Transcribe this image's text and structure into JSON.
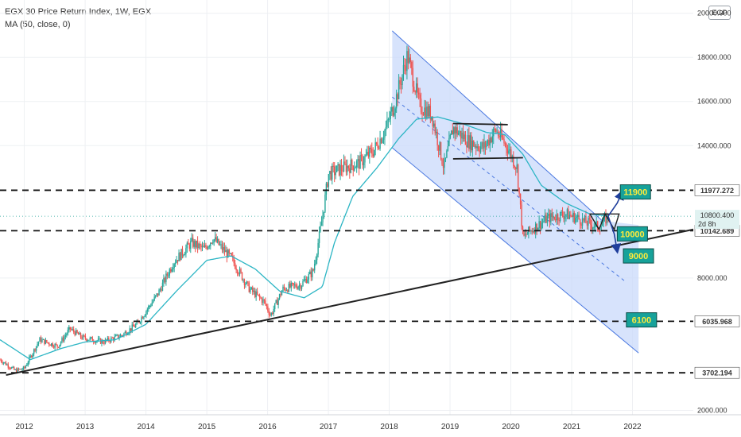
{
  "legend": {
    "title": "EGX 30 Price Return Index, 1W, EGX",
    "ma": "MA (50, close, 0)"
  },
  "currency": "EGP",
  "colors": {
    "up": "#26a69a",
    "down": "#ef5350",
    "ma": "#2bb5c4",
    "channel_fill": "#c9d9fb",
    "channel_line": "#4a78e0",
    "annotation_box": "#17a29a",
    "annotation_text": "#ffeb3b",
    "arrow": "#1f3e9c",
    "level_line": "#111111",
    "grid": "#eef0f3"
  },
  "chart_data": {
    "type": "candlestick",
    "title": "EGX 30 Price Return Index, 1W, EGX",
    "x_ticks": [
      "2012",
      "2013",
      "2014",
      "2015",
      "2016",
      "2017",
      "2018",
      "2019",
      "2020",
      "2021",
      "2022"
    ],
    "y_ticks": [
      "20000.000",
      "18000.000",
      "16000.000",
      "14000.000",
      "8000.000",
      "2000.000"
    ],
    "y_range": [
      1800,
      20600
    ],
    "x_range": [
      2011.6,
      2023.0
    ],
    "horizontal_levels": [
      {
        "value": 11977.272,
        "label": "11977.272",
        "style": "dashed"
      },
      {
        "value": 10142.689,
        "label": "10142.689",
        "style": "dashed"
      },
      {
        "value": 6035.968,
        "label": "6035.968",
        "style": "dashed"
      },
      {
        "value": 3702.194,
        "label": "3702.194",
        "style": "dashed"
      }
    ],
    "last_price": {
      "value": "10800.400",
      "countdown": "2d 8h"
    },
    "trendline": {
      "from": [
        2011.7,
        3600
      ],
      "to": [
        2023.0,
        10200
      ]
    },
    "channel": {
      "upper": [
        [
          2018.05,
          19200
        ],
        [
          2021.5,
          10600
        ]
      ],
      "lower": [
        [
          2018.05,
          13900
        ],
        [
          2022.1,
          4600
        ]
      ],
      "mid": [
        [
          2018.05,
          16200
        ],
        [
          2021.9,
          7800
        ]
      ]
    },
    "consolidation_lines": [
      {
        "from": [
          2019.05,
          15000
        ],
        "to": [
          2019.95,
          14950
        ]
      },
      {
        "from": [
          2019.05,
          13400
        ],
        "to": [
          2020.2,
          13450
        ]
      }
    ],
    "annotations": [
      {
        "text": "11900",
        "x": 2021.8,
        "y": 11900
      },
      {
        "text": "10000",
        "x": 2021.75,
        "y": 10000
      },
      {
        "text": "9000",
        "x": 2021.85,
        "y": 9000
      },
      {
        "text": "6100",
        "x": 2021.9,
        "y": 6100
      }
    ],
    "close_anchors": [
      [
        2011.6,
        4300
      ],
      [
        2011.85,
        3800
      ],
      [
        2012.0,
        3900
      ],
      [
        2012.25,
        5200
      ],
      [
        2012.55,
        4900
      ],
      [
        2012.75,
        5700
      ],
      [
        2012.95,
        5300
      ],
      [
        2013.3,
        5100
      ],
      [
        2013.6,
        5400
      ],
      [
        2013.85,
        5900
      ],
      [
        2014.2,
        7300
      ],
      [
        2014.45,
        8700
      ],
      [
        2014.75,
        9600
      ],
      [
        2014.95,
        9300
      ],
      [
        2015.1,
        9800
      ],
      [
        2015.4,
        8900
      ],
      [
        2015.7,
        7500
      ],
      [
        2015.95,
        6900
      ],
      [
        2016.05,
        6300
      ],
      [
        2016.25,
        7500
      ],
      [
        2016.55,
        7700
      ],
      [
        2016.75,
        8300
      ],
      [
        2016.9,
        10700
      ],
      [
        2017.0,
        12700
      ],
      [
        2017.25,
        13000
      ],
      [
        2017.5,
        13200
      ],
      [
        2017.75,
        13800
      ],
      [
        2017.95,
        14800
      ],
      [
        2018.1,
        16000
      ],
      [
        2018.3,
        18100
      ],
      [
        2018.5,
        15800
      ],
      [
        2018.7,
        15400
      ],
      [
        2018.9,
        13000
      ],
      [
        2019.05,
        14800
      ],
      [
        2019.3,
        14200
      ],
      [
        2019.55,
        13900
      ],
      [
        2019.75,
        14700
      ],
      [
        2019.95,
        13900
      ],
      [
        2020.1,
        13000
      ],
      [
        2020.2,
        9800
      ],
      [
        2020.3,
        10100
      ],
      [
        2020.6,
        10700
      ],
      [
        2020.9,
        10900
      ],
      [
        2021.1,
        10700
      ],
      [
        2021.25,
        10500
      ],
      [
        2021.45,
        10300
      ],
      [
        2021.6,
        10800
      ]
    ],
    "ma_anchors": [
      [
        2011.6,
        5200
      ],
      [
        2012.1,
        4300
      ],
      [
        2012.6,
        4800
      ],
      [
        2013.0,
        5100
      ],
      [
        2013.5,
        5200
      ],
      [
        2014.0,
        5900
      ],
      [
        2014.5,
        7400
      ],
      [
        2015.0,
        8800
      ],
      [
        2015.4,
        9000
      ],
      [
        2015.8,
        8400
      ],
      [
        2016.2,
        7400
      ],
      [
        2016.6,
        7100
      ],
      [
        2016.9,
        7600
      ],
      [
        2017.1,
        9600
      ],
      [
        2017.4,
        11700
      ],
      [
        2017.8,
        13000
      ],
      [
        2018.15,
        14300
      ],
      [
        2018.45,
        15200
      ],
      [
        2018.8,
        15300
      ],
      [
        2019.2,
        15000
      ],
      [
        2019.6,
        14600
      ],
      [
        2019.9,
        14500
      ],
      [
        2020.2,
        13600
      ],
      [
        2020.5,
        12200
      ],
      [
        2020.9,
        11400
      ],
      [
        2021.3,
        10900
      ],
      [
        2021.6,
        10800
      ]
    ]
  }
}
